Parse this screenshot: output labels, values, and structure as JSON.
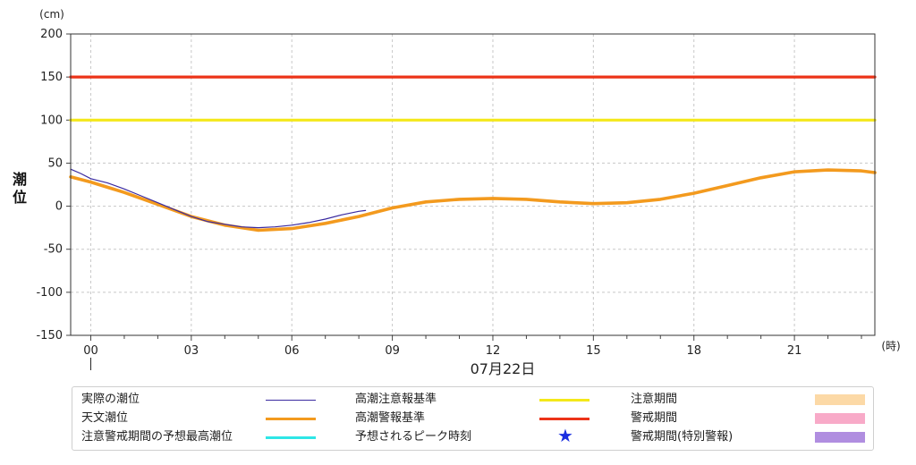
{
  "chart_data": {
    "type": "line",
    "ylabel": "潮位",
    "yunit": "(cm)",
    "xunit": "(時)",
    "date_label": "07月22日",
    "ylim": [
      -150,
      200
    ],
    "yticks": [
      200,
      150,
      100,
      50,
      0,
      -50,
      -100,
      -150
    ],
    "xlim": [
      -0.6,
      23.4
    ],
    "xtick_labels": [
      "00",
      "03",
      "06",
      "09",
      "12",
      "15",
      "18",
      "21"
    ],
    "xtick_values": [
      0,
      3,
      6,
      9,
      12,
      15,
      18,
      21
    ],
    "grid": true,
    "series": [
      {
        "name": "実際の潮位",
        "color": "#3a2aa0",
        "x": [
          -0.6,
          -0.3,
          0,
          0.5,
          1,
          1.5,
          2,
          2.5,
          3,
          3.5,
          4,
          4.5,
          5,
          5.5,
          6,
          6.5,
          7,
          7.5,
          8,
          8.2
        ],
        "y": [
          43,
          38,
          32,
          27,
          20,
          12,
          4,
          -4,
          -12,
          -18,
          -21,
          -24,
          -25,
          -24,
          -22,
          -19,
          -15,
          -10,
          -6,
          -5
        ]
      },
      {
        "name": "天文潮位",
        "color": "#f39a1e",
        "x": [
          -0.6,
          0,
          1,
          2,
          3,
          4,
          5,
          6,
          7,
          8,
          9,
          10,
          11,
          12,
          13,
          14,
          15,
          16,
          17,
          18,
          19,
          20,
          21,
          22,
          23,
          23.4
        ],
        "y": [
          34,
          28,
          16,
          2,
          -12,
          -22,
          -28,
          -26,
          -20,
          -12,
          -2,
          5,
          8,
          9,
          8,
          5,
          3,
          4,
          8,
          15,
          24,
          33,
          40,
          42,
          41,
          39
        ]
      },
      {
        "name": "高潮注意報基準",
        "color": "#f4e81a",
        "x": [
          -0.6,
          23.4
        ],
        "y": [
          100,
          100
        ]
      },
      {
        "name": "高潮警報基準",
        "color": "#ec3318",
        "x": [
          -0.6,
          23.4
        ],
        "y": [
          150,
          150
        ]
      }
    ]
  },
  "legend": [
    {
      "label": "実際の潮位",
      "symbol": "line",
      "color": "#3a2aa0",
      "thin": true
    },
    {
      "label": "高潮注意報基準",
      "symbol": "line",
      "color": "#f4e81a"
    },
    {
      "label": "注意期間",
      "symbol": "box",
      "color": "#fcd9a6"
    },
    {
      "label": "天文潮位",
      "symbol": "line",
      "color": "#f39a1e"
    },
    {
      "label": "高潮警報基準",
      "symbol": "line",
      "color": "#ec3318"
    },
    {
      "label": "警戒期間",
      "symbol": "box",
      "color": "#f8aac8"
    },
    {
      "label": "注意警戒期間の予想最高潮位",
      "symbol": "line",
      "color": "#2ee6e6"
    },
    {
      "label": "予想されるピーク時刻",
      "symbol": "star",
      "color": "#1a2ee0"
    },
    {
      "label": "警戒期間(特別警報)",
      "symbol": "box",
      "color": "#b08ee0"
    }
  ]
}
